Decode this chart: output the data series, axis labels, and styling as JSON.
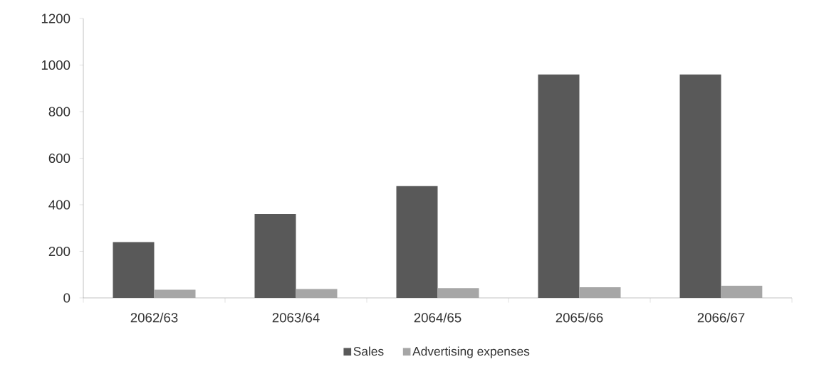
{
  "chart_data": {
    "type": "bar",
    "categories": [
      "2062/63",
      "2063/64",
      "2064/65",
      "2065/66",
      "2066/67"
    ],
    "series": [
      {
        "name": "Sales",
        "color": "#595959",
        "values": [
          240,
          360,
          480,
          960,
          960
        ]
      },
      {
        "name": "Advertising expenses",
        "color": "#a6a6a6",
        "values": [
          35,
          38,
          42,
          46,
          53
        ]
      }
    ],
    "ylim": [
      0,
      1200
    ],
    "yticks": [
      0,
      200,
      400,
      600,
      800,
      1000,
      1200
    ],
    "legend": "bottom"
  }
}
